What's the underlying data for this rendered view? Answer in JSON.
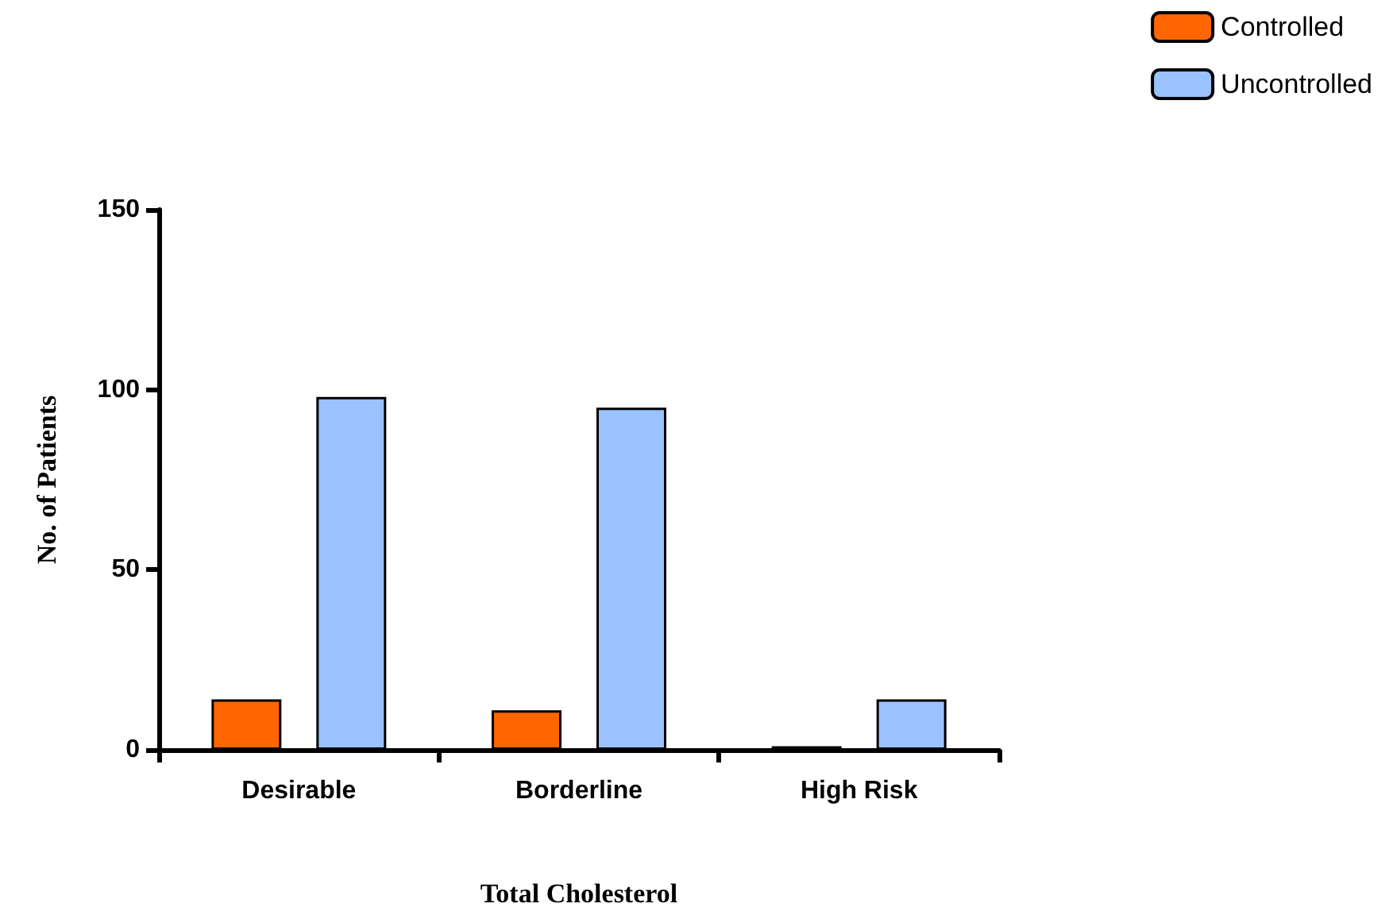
{
  "chart_data": {
    "type": "bar",
    "xlabel": "Total Cholesterol",
    "ylabel": "No. of Patients",
    "categories": [
      "Desirable",
      "Borderline",
      "High Risk"
    ],
    "series": [
      {
        "name": "Controlled",
        "color": "#ff6600",
        "values": [
          14,
          11,
          1
        ]
      },
      {
        "name": "Uncontrolled",
        "color": "#99c2ff",
        "values": [
          98,
          95,
          14
        ]
      }
    ],
    "ylim": [
      0,
      150
    ],
    "yticks": [
      0,
      50,
      100,
      150
    ],
    "grid": false,
    "legend": "top right"
  }
}
